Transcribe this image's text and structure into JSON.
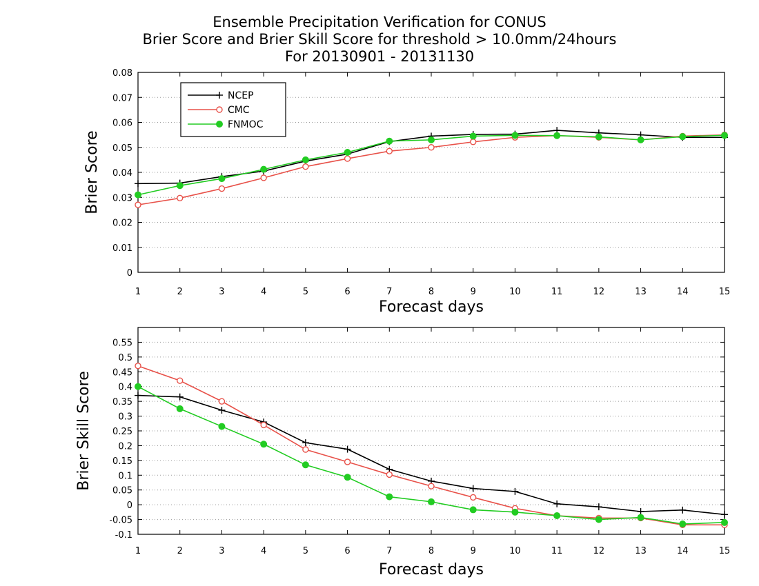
{
  "title": {
    "line1": "Ensemble Precipitation Verification for CONUS",
    "line2": "Brier Score and Brier Skill Score for threshold > 10.0mm/24hours",
    "line3": "For 20130901 - 20131130"
  },
  "colors": {
    "NCEP": "#000000",
    "CMC": "#e8524a",
    "FNMOC": "#22cc22",
    "grid": "#9a9a9a"
  },
  "chart_data": [
    {
      "type": "line",
      "ylabel": "Brier Score",
      "xlabel": "Forecast days",
      "x": [
        1,
        2,
        3,
        4,
        5,
        6,
        7,
        8,
        9,
        10,
        11,
        12,
        13,
        14,
        15
      ],
      "xlim": [
        1,
        15
      ],
      "ylim": [
        0,
        0.08
      ],
      "yticks": [
        0,
        0.01,
        0.02,
        0.03,
        0.04,
        0.05,
        0.06,
        0.07,
        0.08
      ],
      "ytick_labels": [
        "0",
        "0.01",
        "0.02",
        "0.03",
        "0.04",
        "0.05",
        "0.06",
        "0.07",
        "0.08"
      ],
      "grid": "horizontal dotted",
      "legend": "top-left",
      "series": [
        {
          "name": "NCEP",
          "marker": "plus",
          "values": [
            0.0355,
            0.0357,
            0.0383,
            0.0405,
            0.0445,
            0.0473,
            0.0523,
            0.0545,
            0.0552,
            0.0553,
            0.0568,
            0.0558,
            0.055,
            0.054,
            0.054
          ]
        },
        {
          "name": "CMC",
          "marker": "open-circle",
          "values": [
            0.027,
            0.0297,
            0.0335,
            0.0378,
            0.0423,
            0.0455,
            0.0485,
            0.05,
            0.0522,
            0.054,
            0.0547,
            0.054,
            0.053,
            0.0545,
            0.055
          ]
        },
        {
          "name": "FNMOC",
          "marker": "filled-circle",
          "values": [
            0.031,
            0.0347,
            0.0375,
            0.0412,
            0.045,
            0.048,
            0.0525,
            0.053,
            0.0545,
            0.0548,
            0.0547,
            0.0542,
            0.053,
            0.0543,
            0.0548
          ]
        }
      ]
    },
    {
      "type": "line",
      "ylabel": "Brier Skill Score",
      "xlabel": "Forecast days",
      "x": [
        1,
        2,
        3,
        4,
        5,
        6,
        7,
        8,
        9,
        10,
        11,
        12,
        13,
        14,
        15
      ],
      "xlim": [
        1,
        15
      ],
      "ylim": [
        -0.1,
        0.6
      ],
      "yticks": [
        -0.1,
        -0.05,
        0,
        0.05,
        0.1,
        0.15,
        0.2,
        0.25,
        0.3,
        0.35,
        0.4,
        0.45,
        0.5,
        0.55
      ],
      "ytick_labels": [
        "-0.1",
        "-0.05",
        "0",
        "0.05",
        "0.1",
        "0.15",
        "0.2",
        "0.25",
        "0.3",
        "0.35",
        "0.4",
        "0.45",
        "0.5",
        "0.55"
      ],
      "grid": "horizontal dotted",
      "series": [
        {
          "name": "NCEP",
          "marker": "plus",
          "values": [
            0.37,
            0.365,
            0.32,
            0.28,
            0.21,
            0.188,
            0.12,
            0.08,
            0.055,
            0.045,
            0.003,
            -0.007,
            -0.023,
            -0.018,
            -0.033
          ]
        },
        {
          "name": "CMC",
          "marker": "open-circle",
          "values": [
            0.47,
            0.42,
            0.35,
            0.27,
            0.187,
            0.145,
            0.102,
            0.063,
            0.025,
            -0.012,
            -0.037,
            -0.045,
            -0.045,
            -0.068,
            -0.068
          ]
        },
        {
          "name": "FNMOC",
          "marker": "filled-circle",
          "values": [
            0.4,
            0.325,
            0.265,
            0.205,
            0.135,
            0.093,
            0.027,
            0.01,
            -0.017,
            -0.025,
            -0.037,
            -0.05,
            -0.043,
            -0.065,
            -0.06
          ]
        }
      ]
    }
  ]
}
